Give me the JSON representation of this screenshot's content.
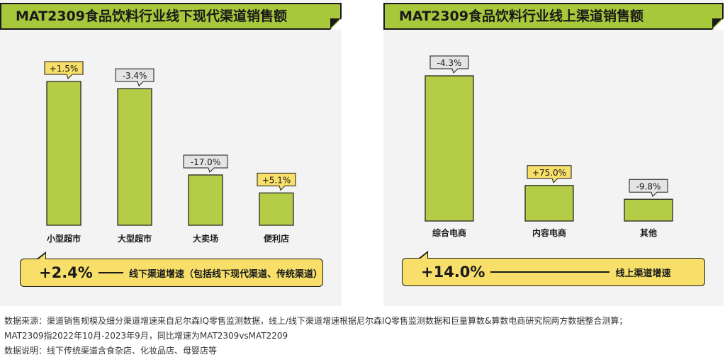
{
  "chart_data": [
    {
      "type": "bar",
      "title": "MAT2309食品饮料行业线下现代渠道销售额",
      "categories": [
        "小型超市",
        "大型超市",
        "大卖场",
        "便利店"
      ],
      "values": [
        100,
        95,
        35,
        22.5
      ],
      "labels": [
        "+1.5%",
        "-3.4%",
        "-17.0%",
        "+5.1%"
      ],
      "label_style": [
        "positive",
        "negative",
        "negative",
        "positive"
      ],
      "summary": {
        "value": "+2.4%",
        "text": "线下渠道增速（包括线下现代渠道、传统渠道）"
      }
    },
    {
      "type": "bar",
      "title": "MAT2309食品饮料行业线上渠道销售额",
      "categories": [
        "综合电商",
        "内容电商",
        "其他"
      ],
      "values": [
        100,
        24.5,
        15
      ],
      "labels": [
        "-4.3%",
        "+75.0%",
        "-9.8%"
      ],
      "label_style": [
        "negative",
        "positive",
        "negative"
      ],
      "summary": {
        "value": "+14.0%",
        "text": "线上渠道增速"
      }
    }
  ],
  "colors": {
    "bar": "#b5cc47",
    "title_banner": "#a8c83c",
    "positive_label": "#f7df6a",
    "negative_label": "#e4e4e4",
    "summary_box": "#f7df6a",
    "panel_bg": "#f3f3f3"
  },
  "notes": [
    "数据来源：渠道销售规模及细分渠道增速来自尼尔森IQ零售监测数据，线上/线下渠道增速根据尼尔森IQ零售监测数据和巨量算数&算数电商研究院两方数据整合测算；",
    "MAT2309指2022年10月-2023年9月，同比增速为MAT2309vsMAT2209",
    "数据说明：线下传统渠道含食杂店、化妆品店、母婴店等"
  ]
}
